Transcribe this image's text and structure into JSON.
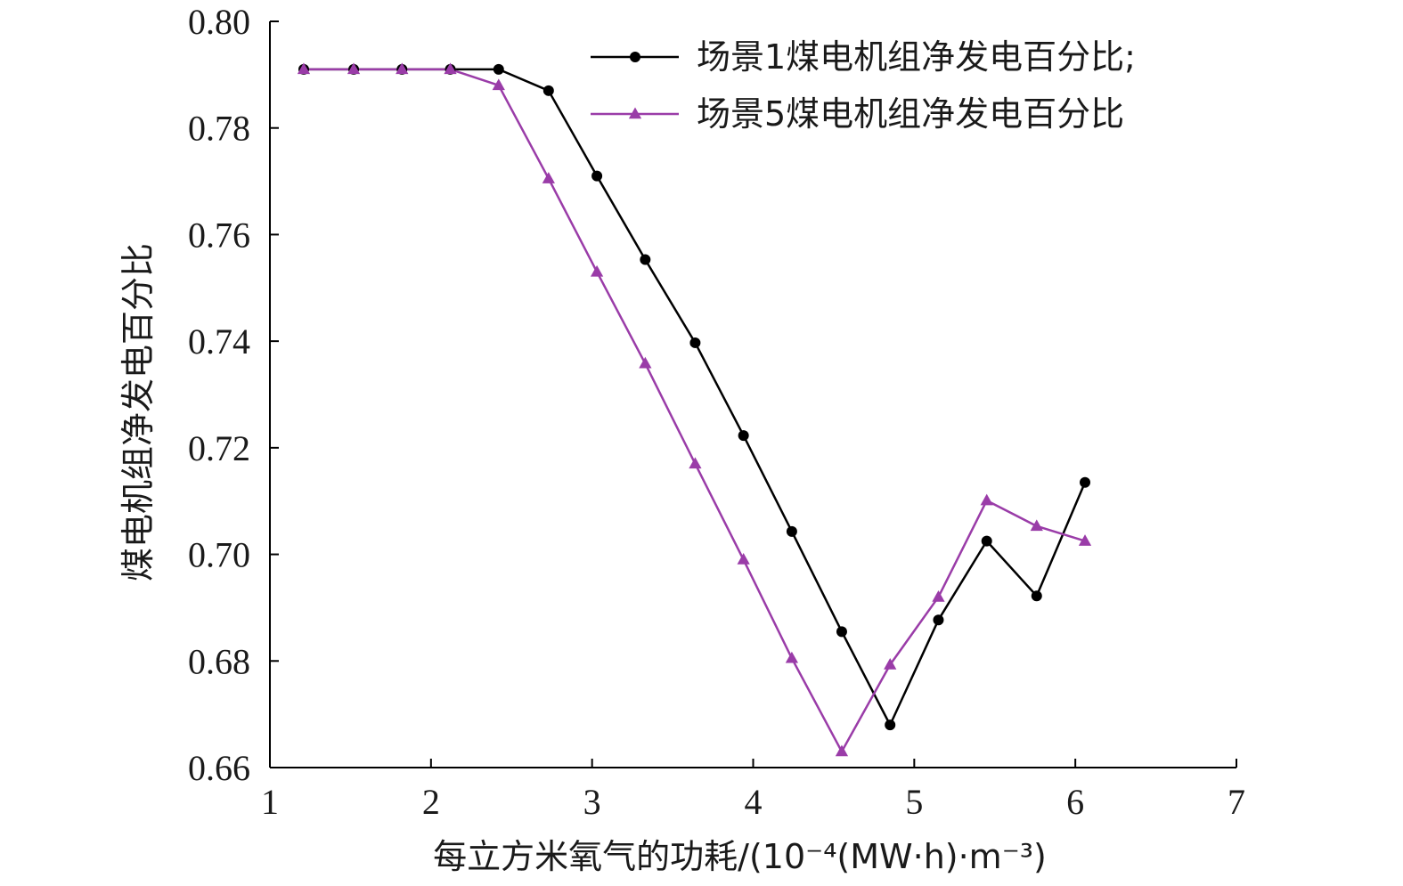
{
  "chart_data": {
    "type": "line",
    "title": "",
    "xlabel": "每立方米氧气的功耗/(10⁻⁴(MW·h)·m⁻³)",
    "ylabel": "煤电机组净发电百分比",
    "xlim": [
      1,
      7
    ],
    "ylim": [
      0.66,
      0.8
    ],
    "x_ticks": [
      1,
      2,
      3,
      4,
      5,
      6,
      7
    ],
    "x_tick_labels": [
      "1",
      "2",
      "3",
      "4",
      "5",
      "6",
      "7"
    ],
    "y_ticks": [
      0.66,
      0.68,
      0.7,
      0.72,
      0.74,
      0.76,
      0.78,
      0.8
    ],
    "y_tick_labels": [
      "0.66",
      "0.68",
      "0.70",
      "0.72",
      "0.74",
      "0.76",
      "0.78",
      "0.80"
    ],
    "grid": false,
    "legend_position": "top-right",
    "series": [
      {
        "name": "场景1煤电机组净发电百分比;",
        "color": "#000000",
        "marker": "circle",
        "x": [
          1.21,
          1.52,
          1.82,
          2.12,
          2.42,
          2.73,
          3.03,
          3.33,
          3.64,
          3.94,
          4.24,
          4.55,
          4.85,
          5.15,
          5.45,
          5.76,
          6.06
        ],
        "y": [
          0.791,
          0.791,
          0.791,
          0.791,
          0.791,
          0.787,
          0.771,
          0.7553,
          0.7397,
          0.7223,
          0.7043,
          0.6855,
          0.668,
          0.6877,
          0.7025,
          0.6922,
          0.7135
        ]
      },
      {
        "name": "场景5煤电机组净发电百分比",
        "color": "#9a3ca8",
        "marker": "triangle",
        "x": [
          1.21,
          1.52,
          1.82,
          2.12,
          2.42,
          2.73,
          3.03,
          3.33,
          3.64,
          3.94,
          4.24,
          4.55,
          4.85,
          5.15,
          5.45,
          5.76,
          6.06
        ],
        "y": [
          0.791,
          0.791,
          0.791,
          0.791,
          0.788,
          0.7705,
          0.753,
          0.7358,
          0.717,
          0.699,
          0.6805,
          0.663,
          0.6793,
          0.692,
          0.7101,
          0.7053,
          0.7025
        ]
      }
    ]
  }
}
